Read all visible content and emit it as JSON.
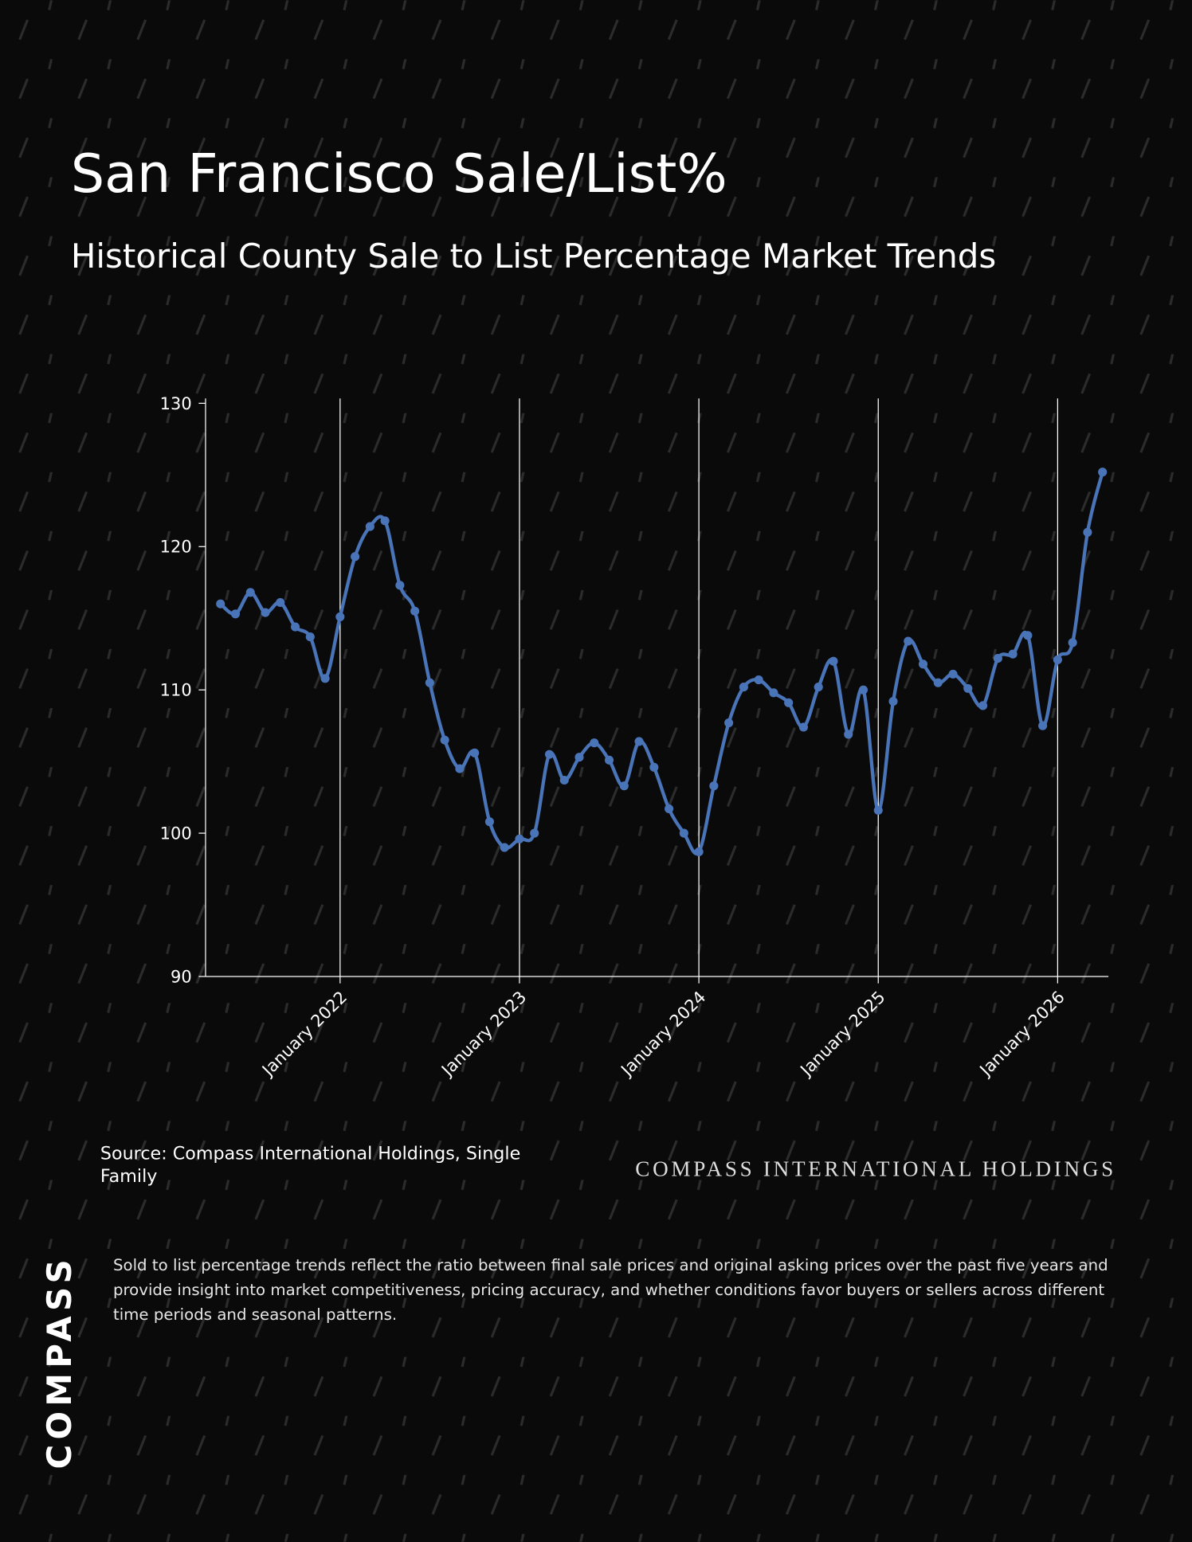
{
  "chart_data": {
    "type": "line",
    "title": "San Francisco Sale/List%",
    "subtitle": "Historical County Sale to List Percentage Market Trends",
    "x": [
      "2021-05",
      "2021-06",
      "2021-07",
      "2021-08",
      "2021-09",
      "2021-10",
      "2021-11",
      "2021-12",
      "2022-01",
      "2022-02",
      "2022-03",
      "2022-04",
      "2022-05",
      "2022-06",
      "2022-07",
      "2022-08",
      "2022-09",
      "2022-10",
      "2022-11",
      "2022-12",
      "2023-01",
      "2023-02",
      "2023-03",
      "2023-04",
      "2023-05",
      "2023-06",
      "2023-07",
      "2023-08",
      "2023-09",
      "2023-10",
      "2023-11",
      "2023-12",
      "2024-01",
      "2024-02",
      "2024-03",
      "2024-04",
      "2024-05",
      "2024-06",
      "2024-07",
      "2024-08",
      "2024-09",
      "2024-10",
      "2024-11",
      "2024-12",
      "2025-01",
      "2025-02",
      "2025-03",
      "2025-04",
      "2025-05",
      "2025-06",
      "2025-07",
      "2025-08",
      "2025-09",
      "2025-10",
      "2025-11",
      "2025-12",
      "2026-01",
      "2026-02",
      "2026-03",
      "2026-04"
    ],
    "values": [
      116.0,
      115.3,
      116.8,
      115.4,
      116.1,
      114.4,
      113.7,
      110.8,
      115.1,
      119.3,
      121.4,
      121.8,
      117.3,
      115.5,
      110.5,
      106.5,
      104.5,
      105.6,
      100.8,
      99.0,
      99.6,
      100.0,
      105.5,
      103.7,
      105.3,
      106.3,
      105.1,
      103.3,
      106.4,
      104.6,
      101.7,
      100.0,
      98.7,
      103.3,
      107.7,
      110.2,
      110.7,
      109.8,
      109.1,
      107.4,
      110.2,
      112.0,
      106.9,
      110.0,
      101.6,
      109.2,
      113.4,
      111.8,
      110.5,
      111.1,
      110.1,
      108.9,
      112.2,
      112.5,
      113.8,
      107.5,
      112.1,
      113.3,
      121.0,
      125.2
    ],
    "color": "#4a74b8",
    "xlim": [
      "2021-04",
      "2026-04"
    ],
    "xticks": [
      {
        "value": "2022-01",
        "label": "January 2022"
      },
      {
        "value": "2023-01",
        "label": "January 2023"
      },
      {
        "value": "2024-01",
        "label": "January 2024"
      },
      {
        "value": "2025-01",
        "label": "January 2025"
      },
      {
        "value": "2026-01",
        "label": "January 2026"
      }
    ],
    "ylim": [
      90,
      130
    ],
    "yticks": [
      90,
      100,
      110,
      120,
      130
    ],
    "grid": "x",
    "source": "Source: Compass International Holdings, Single Family"
  },
  "brand": "COMPASS INTERNATIONAL HOLDINGS",
  "description": "Sold to list percentage trends reflect the ratio between final sale prices and original asking prices over the past five years and provide insight into market competitiveness, pricing accuracy, and whether conditions favor buyers or sellers across different time periods and seasonal patterns.",
  "logo": "COMPASS"
}
